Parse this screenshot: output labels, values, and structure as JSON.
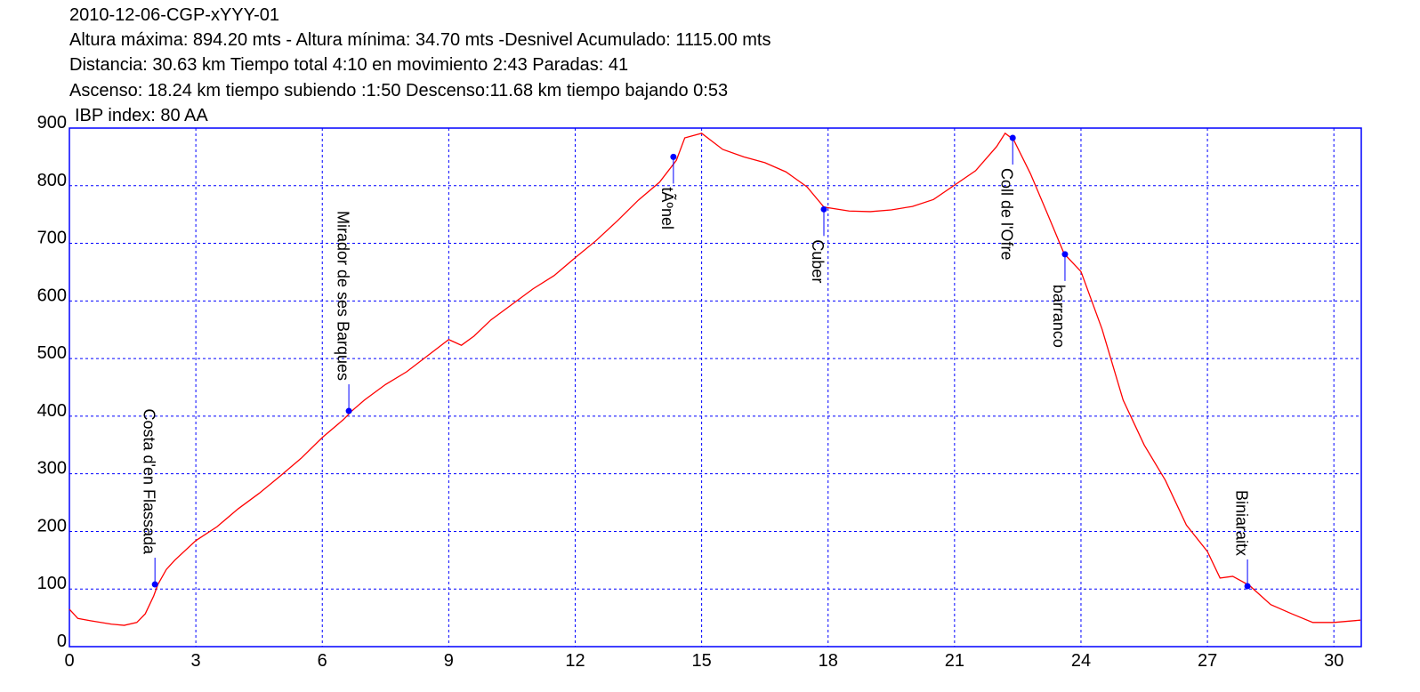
{
  "chart_data": {
    "type": "line",
    "title": "2010-12-06-CGP-xYYY-01",
    "subtitle_lines": [
      "Altura máxima: 894.20 mts - Altura mínima: 34.70 mts -Desnivel Acumulado: 1115.00 mts",
      "Distancia: 30.63 km  Tiempo total 4:10  en movimiento 2:43 Paradas: 41",
      "Ascenso: 18.24 km  tiempo subiendo :1:50  Descenso:11.68 km tiempo bajando 0:53",
      "IBP index: 80 AA"
    ],
    "x": [
      0,
      0.2,
      0.5,
      1.0,
      1.3,
      1.6,
      1.8,
      2.0,
      2.1,
      2.3,
      2.5,
      3.0,
      3.5,
      4.0,
      4.5,
      5.0,
      5.5,
      6.0,
      6.5,
      6.7,
      7.0,
      7.5,
      8.0,
      8.5,
      9.0,
      9.3,
      9.6,
      10.0,
      10.5,
      11.0,
      11.5,
      12.0,
      12.5,
      13.0,
      13.5,
      14.0,
      14.4,
      14.6,
      15.0,
      15.5,
      16.0,
      16.5,
      17.0,
      17.5,
      17.9,
      18.5,
      19.0,
      19.5,
      20.0,
      20.5,
      21.0,
      21.5,
      22.0,
      22.2,
      22.4,
      22.8,
      23.2,
      23.6,
      24.0,
      24.5,
      25.0,
      25.5,
      26.0,
      26.5,
      27.0,
      27.3,
      27.6,
      28.0,
      28.5,
      29.0,
      29.5,
      30.0,
      30.63
    ],
    "series": [
      {
        "color": "#ff0000",
        "values": [
          65,
          49,
          45,
          39,
          37,
          42,
          57,
          88,
          108,
          134,
          150,
          184,
          208,
          239,
          266,
          296,
          327,
          363,
          394,
          409,
          428,
          455,
          477,
          505,
          533,
          523,
          539,
          567,
          594,
          621,
          644,
          675,
          705,
          739,
          775,
          806,
          844,
          883,
          891,
          863,
          850,
          840,
          824,
          798,
          763,
          756,
          755,
          758,
          764,
          776,
          801,
          826,
          868,
          891,
          880,
          821,
          752,
          682,
          651,
          551,
          428,
          350,
          289,
          211,
          165,
          119,
          122,
          106,
          73,
          57,
          42,
          42,
          46
        ]
      }
    ],
    "waypoints": [
      {
        "label": "Costa d'en Flassada",
        "x": 2.03,
        "y": 108,
        "label_position": "above"
      },
      {
        "label": "Mirador de ses Barques",
        "x": 6.63,
        "y": 409,
        "label_position": "above"
      },
      {
        "label": "tÃºnel",
        "x": 14.33,
        "y": 850,
        "label_position": "below"
      },
      {
        "label": "Cuber",
        "x": 17.9,
        "y": 759,
        "label_position": "below"
      },
      {
        "label": "Coll de l'Ofre",
        "x": 22.38,
        "y": 883,
        "label_position": "below"
      },
      {
        "label": "barranco",
        "x": 23.62,
        "y": 681,
        "label_position": "below"
      },
      {
        "label": "Biniaraitx",
        "x": 27.95,
        "y": 105,
        "label_position": "above"
      }
    ],
    "waypoint_color": "#0000ff",
    "xlim": [
      0,
      30.65
    ],
    "ylim": [
      0,
      900
    ],
    "xticks": [
      0,
      3,
      6,
      9,
      12,
      15,
      18,
      21,
      24,
      27,
      30
    ],
    "yticks": [
      0,
      100,
      200,
      300,
      400,
      500,
      600,
      700,
      800,
      900
    ],
    "grid": true,
    "grid_color": "#0000ff",
    "axis_color": "#0000ff"
  }
}
